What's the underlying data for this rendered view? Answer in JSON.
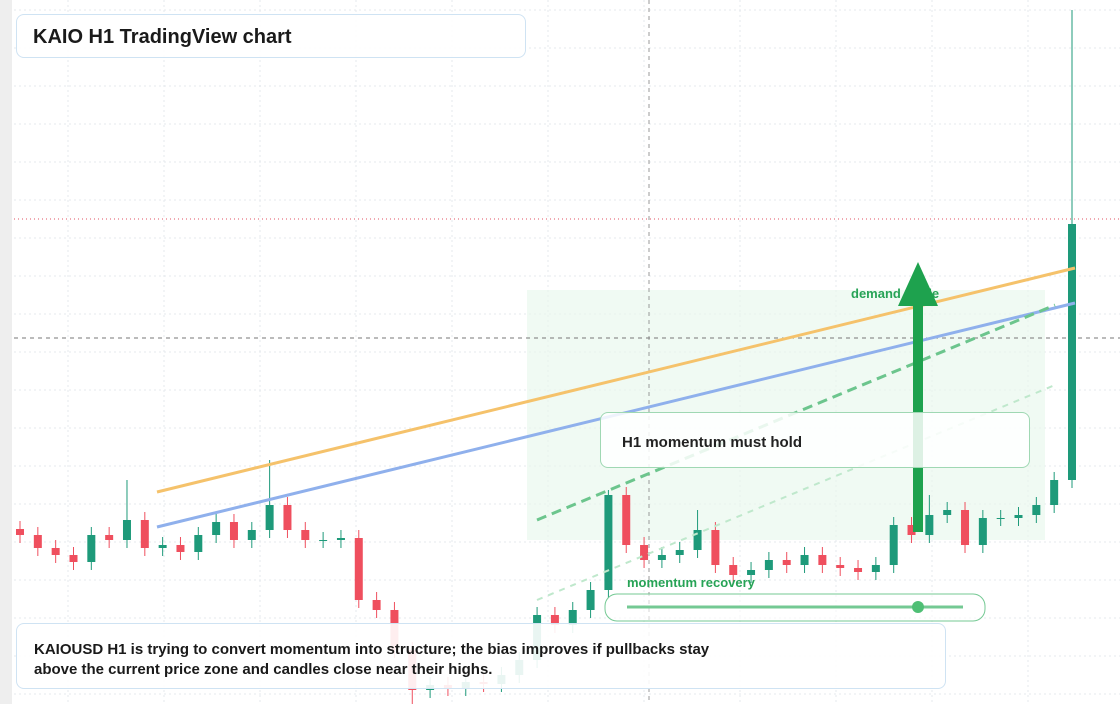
{
  "header": {
    "title": "KAIO H1 TradingView chart"
  },
  "chart_data": {
    "type": "candlestick",
    "up_color": "#1e9a7a",
    "down_color": "#ef4f5e",
    "open": [
      17.5,
      16.9,
      15.6,
      14.9,
      14.2,
      16.9,
      16.4,
      18.4,
      15.6,
      15.9,
      15.2,
      16.9,
      18.2,
      16.4,
      17.4,
      19.9,
      17.4,
      16.4,
      16.4,
      16.6,
      10.4,
      9.4,
      5.4,
      1.4,
      1.9,
      1.6,
      2.2,
      2.0,
      2.9,
      4.4,
      8.9,
      7.9,
      9.4,
      11.4,
      20.9,
      15.9,
      14.4,
      14.9,
      15.4,
      17.4,
      13.9,
      12.9,
      13.4,
      14.4,
      13.9,
      14.9,
      13.9,
      13.6,
      13.2,
      13.9,
      17.9,
      16.9,
      18.9,
      19.4,
      15.9,
      18.6,
      18.6,
      18.9,
      19.9,
      22.4
    ],
    "high": [
      18.3,
      17.7,
      16.4,
      15.7,
      17.7,
      17.7,
      22.4,
      19.2,
      16.7,
      16.7,
      17.7,
      19.0,
      19.0,
      18.2,
      24.4,
      20.7,
      18.2,
      17.2,
      17.4,
      17.4,
      11.2,
      10.2,
      6.2,
      2.7,
      2.7,
      3.0,
      3.0,
      3.7,
      5.2,
      9.7,
      9.7,
      10.2,
      12.2,
      21.4,
      21.7,
      16.7,
      15.7,
      16.2,
      19.4,
      18.2,
      14.7,
      14.2,
      15.2,
      15.2,
      15.7,
      15.7,
      14.7,
      14.4,
      14.7,
      18.7,
      18.7,
      20.9,
      20.2,
      20.2,
      19.4,
      19.4,
      19.7,
      20.7,
      23.2,
      69.4
    ],
    "low": [
      16.1,
      14.8,
      14.1,
      13.4,
      13.4,
      15.6,
      15.6,
      14.8,
      14.8,
      14.4,
      14.4,
      16.1,
      15.6,
      15.6,
      16.6,
      16.6,
      15.6,
      15.6,
      15.6,
      9.6,
      8.6,
      4.6,
      0,
      0.6,
      0.8,
      0.8,
      1.2,
      1.2,
      2.1,
      3.6,
      7.1,
      7.1,
      8.6,
      10.6,
      15.1,
      13.6,
      13.6,
      14.1,
      14.6,
      13.1,
      12.1,
      12.1,
      12.6,
      13.1,
      13.1,
      13.1,
      12.8,
      12.4,
      12.4,
      13.1,
      16.1,
      16.1,
      18.1,
      15.1,
      15.1,
      17.8,
      17.8,
      18.1,
      19.1,
      21.6
    ],
    "close": [
      16.9,
      15.6,
      14.9,
      14.2,
      16.9,
      16.4,
      18.4,
      15.6,
      15.9,
      15.2,
      16.9,
      18.2,
      16.4,
      17.4,
      19.9,
      17.4,
      16.4,
      16.4,
      16.6,
      10.4,
      9.4,
      5.4,
      1.4,
      1.9,
      1.6,
      2.2,
      2.0,
      2.9,
      4.4,
      8.9,
      7.9,
      9.4,
      11.4,
      20.9,
      15.9,
      14.4,
      14.9,
      15.4,
      17.4,
      13.9,
      12.9,
      13.4,
      14.4,
      13.9,
      14.9,
      13.9,
      13.6,
      13.2,
      13.9,
      17.9,
      16.9,
      18.9,
      19.4,
      15.9,
      18.6,
      18.6,
      18.9,
      19.9,
      22.4,
      48.0
    ]
  },
  "annotations": {
    "demand": "demand guide",
    "momentum_hold": "H1 momentum must hold",
    "recovery": "momentum recovery"
  },
  "note": {
    "text": "KAIOUSD H1 is trying to convert momentum into structure; the bias improves if pullbacks stay above the current price zone and candles close near their highs."
  }
}
